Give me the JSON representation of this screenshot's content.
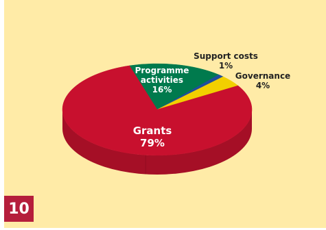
{
  "chart_data": {
    "type": "pie",
    "title": "",
    "slices": [
      {
        "name": "Grants",
        "percent_label": "79%",
        "value": 79,
        "color": "#c8102e",
        "side_color": "#a50f26"
      },
      {
        "name": "Programme activities",
        "percent_label": "16%",
        "value": 16,
        "color": "#007a4d",
        "side_color": "#005c3a"
      },
      {
        "name": "Support costs",
        "percent_label": "1%",
        "value": 1,
        "color": "#1f4e9c",
        "side_color": "#16386f"
      },
      {
        "name": "Governance",
        "percent_label": "4%",
        "value": 4,
        "color": "#f2d000",
        "side_color": "#c9ad00"
      }
    ]
  },
  "page_number": "10",
  "colors": {
    "panel_background": "#ffeba7",
    "badge_background": "#b51e3c"
  }
}
